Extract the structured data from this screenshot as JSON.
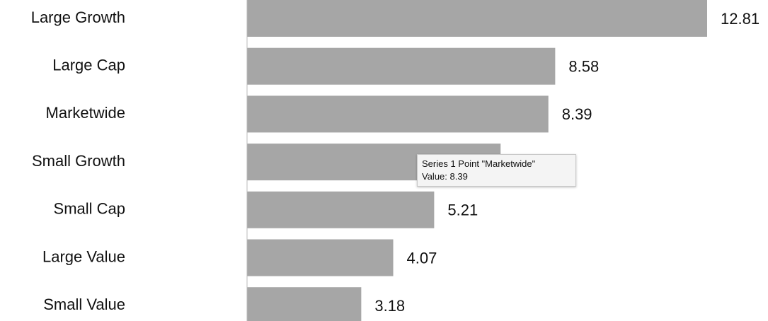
{
  "chart_data": {
    "type": "bar",
    "orientation": "horizontal",
    "categories": [
      "Large Growth",
      "Large Cap",
      "Marketwide",
      "Small Growth",
      "Small Cap",
      "Large Value",
      "Small Value"
    ],
    "values": [
      12.81,
      8.58,
      8.39,
      7.06,
      5.21,
      4.07,
      3.18
    ],
    "color": "#a6a6a6",
    "xlim": [
      0,
      12.81
    ]
  },
  "tooltip": {
    "title": "Series 1 Point \"Marketwide\"",
    "text": "Value: 8.39"
  }
}
